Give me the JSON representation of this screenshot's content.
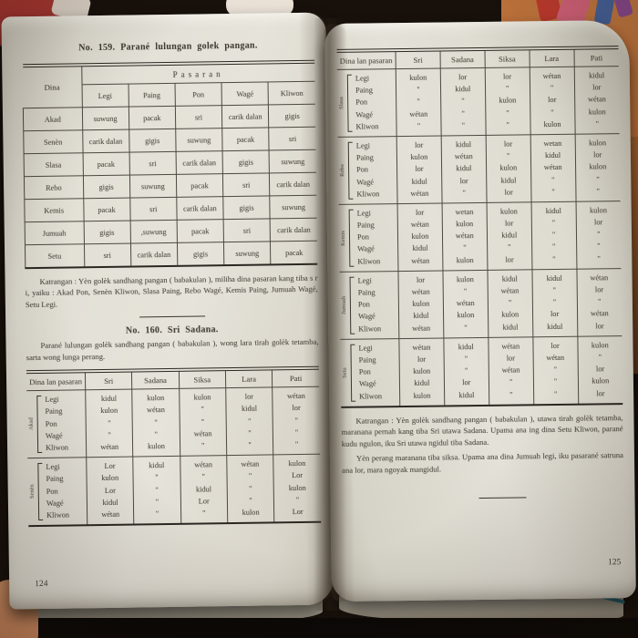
{
  "colors": {
    "page": "#e2dfd5",
    "ink": "#3a352c",
    "wood_background": "#c07138",
    "dark_background": "#17100b",
    "bookmark": "#2e7d8f"
  },
  "page_left": {
    "page_number": "124",
    "section_159": {
      "title": "No. 159. Parané lulungan golek pangan.",
      "table": {
        "corner_header": "Dina",
        "group_header": "Pasaran",
        "columns": [
          "Legi",
          "Paing",
          "Pon",
          "Wagé",
          "Kliwon"
        ],
        "rows": [
          {
            "day": "Akad",
            "values": [
              "suwung",
              "pacak",
              "sri",
              "carik dalan",
              "gigis"
            ]
          },
          {
            "day": "Senèn",
            "values": [
              "carik dalan",
              "gigis",
              "suwung",
              "pacak",
              "sri"
            ]
          },
          {
            "day": "Slasa",
            "values": [
              "pacak",
              "sri",
              "carik dalan",
              "gigis",
              "suwung"
            ]
          },
          {
            "day": "Rebo",
            "values": [
              "gigis",
              "suwung",
              "pacak",
              "sri",
              "carik dalan"
            ]
          },
          {
            "day": "Kemis",
            "values": [
              "pacak",
              "sri",
              "carik dalan",
              "gigis",
              "suwung"
            ]
          },
          {
            "day": "Jumuah",
            "values": [
              "gigis",
              ",suwung",
              "pacak",
              "sri",
              "carik dalan"
            ]
          },
          {
            "day": "Setu",
            "values": [
              "sri",
              "carik dalan",
              "gigis",
              "suwung",
              "pacak"
            ]
          }
        ]
      },
      "note": "Katrangan : Yèn golèk sandhang pangan ( babakulan ), miliha dina pasaran kang tiba s r i, yaiku : Akad Pon, Senèn Kliwon, Slasa Paing, Rebo Wagé, Kemis Paing, Jumuah Wagé, Setu Legi."
    },
    "section_160": {
      "title": "No. 160. Sri Sadana.",
      "intro": "Parané lulungan golèk sandhang pangan ( babakulan ), wong lara tirah golèk tetamba, sarta wong lunga perang.",
      "table": {
        "columns": [
          "Dina lan pasaran",
          "Sri",
          "Sadana",
          "Siksa",
          "Lara",
          "Pati"
        ],
        "groups": [
          {
            "day": "Akad",
            "rows": [
              {
                "pasaran": "Legi",
                "values": [
                  "kidul",
                  "kulon",
                  "kulon",
                  "lor",
                  "wétan"
                ]
              },
              {
                "pasaran": "Paing",
                "values": [
                  "kulon",
                  "wétan",
                  "\"",
                  "kidul",
                  "lor"
                ]
              },
              {
                "pasaran": "Pon",
                "values": [
                  "\"",
                  "\"",
                  "\"",
                  "\"",
                  "\""
                ]
              },
              {
                "pasaran": "Wagé",
                "values": [
                  "\"",
                  "\"",
                  "wétan",
                  "\"",
                  "\""
                ]
              },
              {
                "pasaran": "Kliwon",
                "values": [
                  "wétan",
                  "kulon",
                  "\"",
                  "\"",
                  "\""
                ]
              }
            ]
          },
          {
            "day": "Senèn",
            "rows": [
              {
                "pasaran": "Legi",
                "values": [
                  "Lor",
                  "kidul",
                  "wétan",
                  "wétan",
                  "kulon"
                ]
              },
              {
                "pasaran": "Paing",
                "values": [
                  "kulon",
                  "\"",
                  "\"",
                  "\"",
                  "Lor"
                ]
              },
              {
                "pasaran": "Pon",
                "values": [
                  "Lor",
                  "\"",
                  "kidul",
                  "\"",
                  "kulon"
                ]
              },
              {
                "pasaran": "Wagé",
                "values": [
                  "kidul",
                  "\"",
                  "Lor",
                  "\"",
                  "\""
                ]
              },
              {
                "pasaran": "Kliwon",
                "values": [
                  "wétan",
                  "\"",
                  "\"",
                  "kulon",
                  "Lor"
                ]
              }
            ]
          }
        ]
      }
    }
  },
  "page_right": {
    "page_number": "125",
    "table": {
      "columns": [
        "Dina lan pasaran",
        "Sri",
        "Sadana",
        "Siksa",
        "Lara",
        "Pati"
      ],
      "groups": [
        {
          "day": "Slasa",
          "rows": [
            {
              "pasaran": "Legi",
              "values": [
                "kulon",
                "lor",
                "lor",
                "wétan",
                "kidul"
              ]
            },
            {
              "pasaran": "Paing",
              "values": [
                "\"",
                "kidul",
                "\"",
                "\"",
                "lor"
              ]
            },
            {
              "pasaran": "Pon",
              "values": [
                "\"",
                "\"",
                "kulon",
                "lor",
                "wétan"
              ]
            },
            {
              "pasaran": "Wagé",
              "values": [
                "wétan",
                "\"",
                "\"",
                "\"",
                "kulon"
              ]
            },
            {
              "pasaran": "Kliwon",
              "values": [
                "\"",
                "\"",
                "\"",
                "kulon",
                "\""
              ]
            }
          ]
        },
        {
          "day": "Rebo",
          "rows": [
            {
              "pasaran": "Legi",
              "values": [
                "lor",
                "kidul",
                "lor",
                "wetan",
                "kulon"
              ]
            },
            {
              "pasaran": "Paing",
              "values": [
                "kulon",
                "wétan",
                "\"",
                "kidul",
                "lor"
              ]
            },
            {
              "pasaran": "Pon",
              "values": [
                "lor",
                "kidul",
                "kulon",
                "wétan",
                "kulon"
              ]
            },
            {
              "pasaran": "Wagé",
              "values": [
                "kidul",
                "lor",
                "kidul",
                "\"",
                "\""
              ]
            },
            {
              "pasaran": "Kliwon",
              "values": [
                "wétan",
                "\"",
                "lor",
                "\"",
                "\""
              ]
            }
          ]
        },
        {
          "day": "Kemis",
          "rows": [
            {
              "pasaran": "Legi",
              "values": [
                "lor",
                "wetan",
                "kulon",
                "kidul",
                "kulon"
              ]
            },
            {
              "pasaran": "Paing",
              "values": [
                "wétan",
                "kulon",
                "lor",
                "\"",
                "lor"
              ]
            },
            {
              "pasaran": "Pon",
              "values": [
                "kulon",
                "wétan",
                "kidul",
                "\"",
                "\""
              ]
            },
            {
              "pasaran": "Wagé",
              "values": [
                "kidul",
                "\"",
                "\"",
                "\"",
                "\""
              ]
            },
            {
              "pasaran": "Kliwon",
              "values": [
                "wétan",
                "kulon",
                "lor",
                "\"",
                "\""
              ]
            }
          ]
        },
        {
          "day": "Jumuah",
          "rows": [
            {
              "pasaran": "Legi",
              "values": [
                "lor",
                "kulon",
                "kidul",
                "kidul",
                "wétan"
              ]
            },
            {
              "pasaran": "Paing",
              "values": [
                "wétan",
                "\"",
                "wétan",
                "\"",
                "lor"
              ]
            },
            {
              "pasaran": "Pon",
              "values": [
                "kulon",
                "wétan",
                "\"",
                "\"",
                "\""
              ]
            },
            {
              "pasaran": "Wagé",
              "values": [
                "kidul",
                "kulon",
                "kulon",
                "lor",
                "wétan"
              ]
            },
            {
              "pasaran": "Kliwon",
              "values": [
                "wétan",
                "\"",
                "kidul",
                "kidul",
                "lor"
              ]
            }
          ]
        },
        {
          "day": "Setu",
          "rows": [
            {
              "pasaran": "Legi",
              "values": [
                "wétan",
                "kidul",
                "wétan",
                "lor",
                "kulon"
              ]
            },
            {
              "pasaran": "Paing",
              "values": [
                "lor",
                "\"",
                "lor",
                "wétan",
                "\""
              ]
            },
            {
              "pasaran": "Pon",
              "values": [
                "kulon",
                "\"",
                "wétan",
                "\"",
                "lor"
              ]
            },
            {
              "pasaran": "Wagé",
              "values": [
                "kidul",
                "lor",
                "\"",
                "\"",
                "kulon"
              ]
            },
            {
              "pasaran": "Kliwon",
              "values": [
                "kulon",
                "kidul",
                "\"",
                "\"",
                "lor"
              ]
            }
          ]
        }
      ]
    },
    "note1": "Katrangan : Yèn golèk sandhang pangan ( babakulan ), utawa tirah golèk tetamba, maranana pernah kang tiba Sri utawa Sadana. Upama ana ing dina Setu Kliwon, parané kudu ngulon, iku Sri utawa ngidul tiba Sadana.",
    "note2": "Yèn perang maranana tiba siksa. Upama ana dina Jumuah legi, iku pasarané satruna ana lor, mara ngoyak mangidul."
  }
}
